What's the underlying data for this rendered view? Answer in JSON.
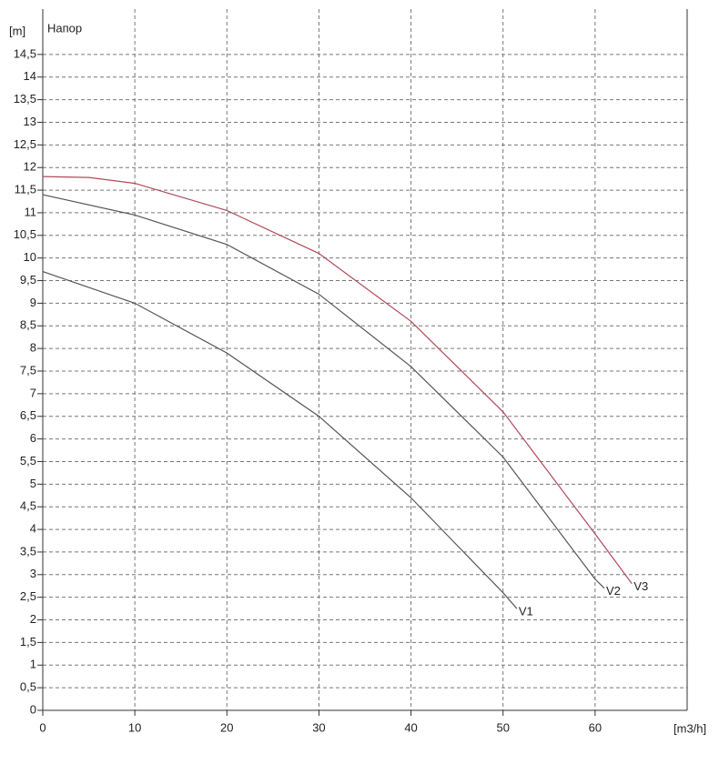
{
  "chart_data": {
    "type": "line",
    "title": "Напор",
    "y_label": "[m]",
    "x_label": "[m3/h]",
    "xlim": [
      0,
      70
    ],
    "xticks": [
      0,
      10,
      20,
      30,
      40,
      50,
      60
    ],
    "ylim": [
      0,
      15
    ],
    "yticks": [
      0,
      {
        "value": 0.5,
        "label": "0,5"
      },
      1,
      {
        "value": 1.5,
        "label": "1,5"
      },
      2,
      {
        "value": 2.5,
        "label": "2,5"
      },
      3,
      {
        "value": 3.5,
        "label": "3,5"
      },
      4,
      {
        "value": 4.5,
        "label": "4,5"
      },
      5,
      {
        "value": 5.5,
        "label": "5,5"
      },
      6,
      {
        "value": 6.5,
        "label": "6,5"
      },
      7,
      {
        "value": 7.5,
        "label": "7,5"
      },
      8,
      {
        "value": 8.5,
        "label": "8,5"
      },
      9,
      {
        "value": 9.5,
        "label": "9,5"
      },
      10,
      {
        "value": 10.5,
        "label": "10,5"
      },
      11,
      {
        "value": 11.5,
        "label": "11,5"
      },
      12,
      {
        "value": 12.5,
        "label": "12,5"
      },
      13,
      {
        "value": 13.5,
        "label": "13,5"
      },
      14,
      {
        "value": 14.5,
        "label": "14,5"
      }
    ],
    "grid": true,
    "series": [
      {
        "name": "V1",
        "color": "#555555",
        "x": [
          0,
          10,
          20,
          30,
          40,
          50,
          51.5
        ],
        "values": [
          9.7,
          9.0,
          7.9,
          6.5,
          4.7,
          2.6,
          2.25
        ]
      },
      {
        "name": "V2",
        "color": "#555555",
        "x": [
          0,
          10,
          20,
          30,
          40,
          50,
          60,
          61
        ],
        "values": [
          11.4,
          10.95,
          10.3,
          9.2,
          7.6,
          5.6,
          2.9,
          2.7
        ]
      },
      {
        "name": "V3",
        "color": "#b04a5a",
        "x": [
          0,
          5,
          10,
          20,
          30,
          40,
          50,
          60,
          64
        ],
        "values": [
          11.8,
          11.78,
          11.65,
          11.05,
          10.1,
          8.6,
          6.6,
          3.9,
          2.8
        ]
      }
    ]
  }
}
